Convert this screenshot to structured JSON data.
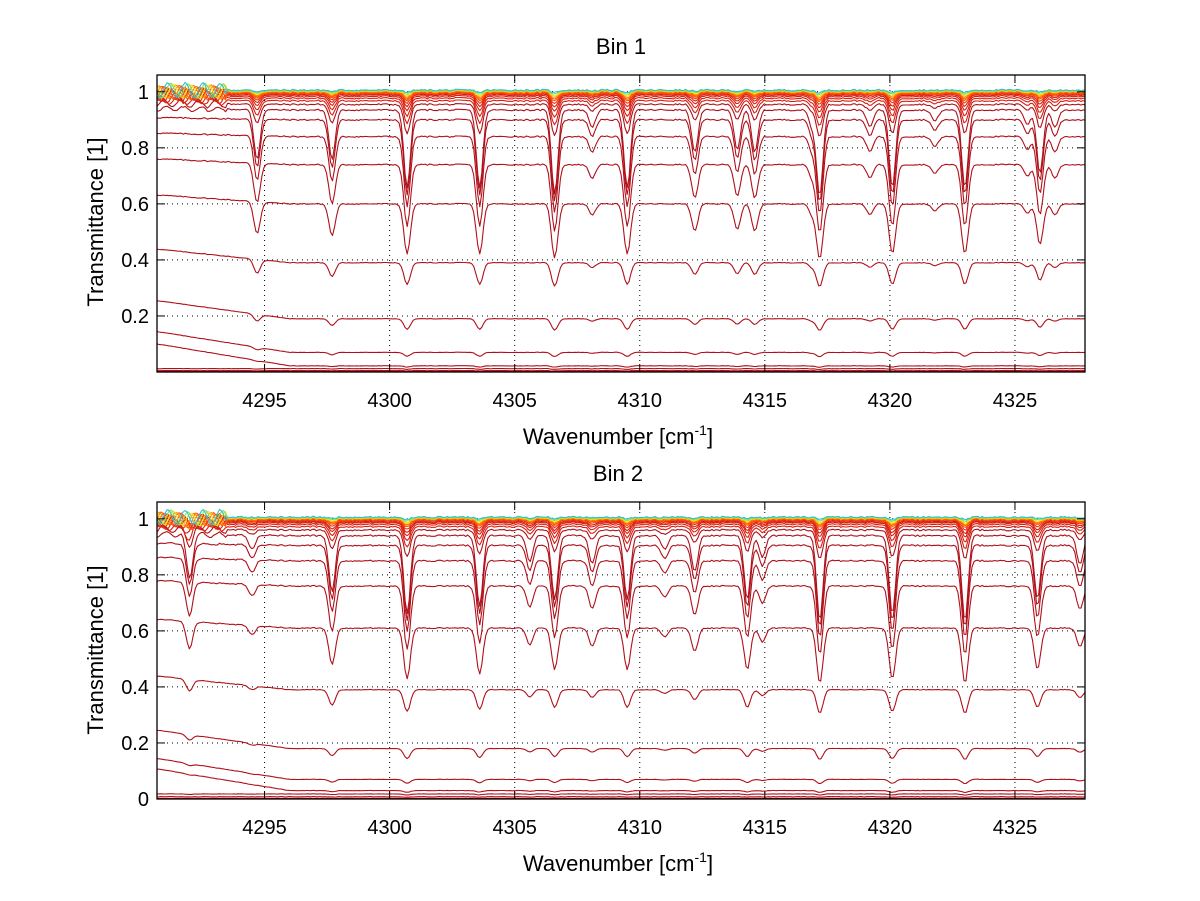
{
  "chart_data": [
    {
      "type": "line",
      "title": "Bin 1",
      "xlabel": "Wavenumber [cm",
      "xlabel_superscript": "-1",
      "xlabel_suffix": "]",
      "ylabel": "Transmittance [1]",
      "xlim": [
        4290.7,
        4327.8
      ],
      "ylim": [
        0,
        1.06
      ],
      "xticks": [
        4295,
        4300,
        4305,
        4310,
        4315,
        4320,
        4325
      ],
      "yticks": [
        0.2,
        0.4,
        0.6,
        0.8,
        1
      ],
      "ytick_labels": [
        "0.2",
        "0.4",
        "0.6",
        "0.8",
        "1"
      ],
      "grid": true,
      "legend": "none",
      "series_description": "Family of ~24 transmittance spectra with baseline levels from ~0 up to 1; colors range from dark red (low transmittance) through red/orange to yellow/green/blue (near 1)",
      "series_baselines": [
        0.0,
        0.005,
        0.012,
        0.022,
        0.07,
        0.19,
        0.39,
        0.6,
        0.74,
        0.84,
        0.9,
        0.935,
        0.955,
        0.968,
        0.977,
        0.984,
        0.989,
        0.993,
        0.996,
        0.998,
        1.0,
        1.002,
        1.004,
        1.006
      ],
      "absorption_lines": [
        {
          "x": 4294.7,
          "strength": 0.35
        },
        {
          "x": 4297.7,
          "strength": 0.35
        },
        {
          "x": 4300.7,
          "strength": 0.55
        },
        {
          "x": 4303.6,
          "strength": 0.55
        },
        {
          "x": 4306.6,
          "strength": 0.6
        },
        {
          "x": 4308.1,
          "strength": 0.12
        },
        {
          "x": 4309.5,
          "strength": 0.55
        },
        {
          "x": 4312.2,
          "strength": 0.3
        },
        {
          "x": 4313.9,
          "strength": 0.28
        },
        {
          "x": 4314.6,
          "strength": 0.3
        },
        {
          "x": 4316.9,
          "strength": 0.12
        },
        {
          "x": 4317.2,
          "strength": 0.6
        },
        {
          "x": 4319.2,
          "strength": 0.12
        },
        {
          "x": 4320.1,
          "strength": 0.55
        },
        {
          "x": 4321.8,
          "strength": 0.08
        },
        {
          "x": 4323.0,
          "strength": 0.55
        },
        {
          "x": 4325.5,
          "strength": 0.1
        },
        {
          "x": 4326.0,
          "strength": 0.45
        },
        {
          "x": 4326.6,
          "strength": 0.12
        }
      ]
    },
    {
      "type": "line",
      "title": "Bin 2",
      "xlabel": "Wavenumber [cm",
      "xlabel_superscript": "-1",
      "xlabel_suffix": "]",
      "ylabel": "Transmittance [1]",
      "xlim": [
        4290.7,
        4327.8
      ],
      "ylim": [
        0,
        1.06
      ],
      "xticks": [
        4295,
        4300,
        4305,
        4310,
        4315,
        4320,
        4325
      ],
      "yticks": [
        0,
        0.2,
        0.4,
        0.6,
        0.8,
        1
      ],
      "ytick_labels": [
        "0",
        "0.2",
        "0.4",
        "0.6",
        "0.8",
        "1"
      ],
      "grid": true,
      "legend": "none",
      "series_description": "Family of ~24 transmittance spectra with baseline levels from ~0 up to 1; colors range from dark red (low transmittance) through red/orange to yellow/green (near 1)",
      "series_baselines": [
        0.0,
        0.008,
        0.018,
        0.03,
        0.07,
        0.18,
        0.39,
        0.61,
        0.76,
        0.85,
        0.905,
        0.94,
        0.96,
        0.972,
        0.98,
        0.986,
        0.99,
        0.994,
        0.997,
        0.999,
        1.0,
        1.002,
        1.004,
        1.006
      ],
      "absorption_lines": [
        {
          "x": 4292.0,
          "strength": 0.3
        },
        {
          "x": 4294.5,
          "strength": 0.1
        },
        {
          "x": 4297.7,
          "strength": 0.4
        },
        {
          "x": 4300.7,
          "strength": 0.55
        },
        {
          "x": 4303.6,
          "strength": 0.5
        },
        {
          "x": 4305.6,
          "strength": 0.18
        },
        {
          "x": 4306.6,
          "strength": 0.45
        },
        {
          "x": 4308.1,
          "strength": 0.2
        },
        {
          "x": 4309.5,
          "strength": 0.45
        },
        {
          "x": 4311.0,
          "strength": 0.1
        },
        {
          "x": 4312.2,
          "strength": 0.25
        },
        {
          "x": 4314.3,
          "strength": 0.45
        },
        {
          "x": 4314.9,
          "strength": 0.15
        },
        {
          "x": 4317.2,
          "strength": 0.6
        },
        {
          "x": 4320.1,
          "strength": 0.55
        },
        {
          "x": 4323.0,
          "strength": 0.6
        },
        {
          "x": 4325.9,
          "strength": 0.45
        },
        {
          "x": 4327.6,
          "strength": 0.2
        }
      ]
    }
  ]
}
